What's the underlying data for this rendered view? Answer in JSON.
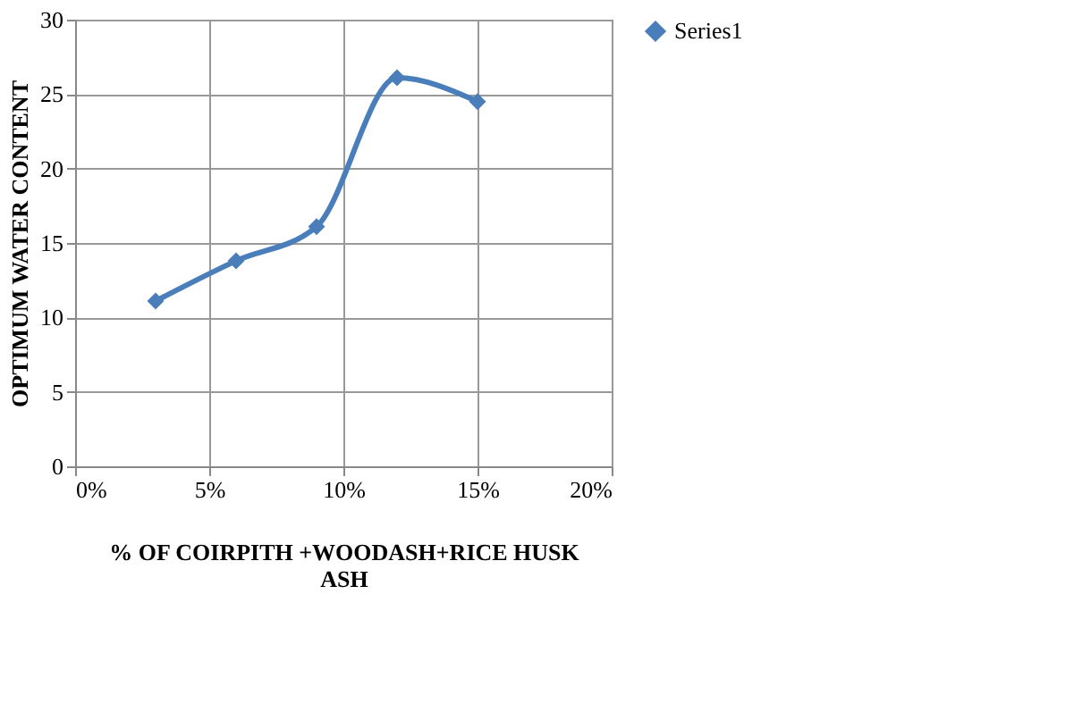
{
  "chart_data": {
    "type": "line",
    "xlabel": "% OF COIRPITH +WOODASH+RICE HUSK ASH",
    "ylabel": "OPTIMUM WATER CONTENT",
    "x": [
      3,
      6,
      9,
      12,
      15
    ],
    "series": [
      {
        "name": "Series1",
        "color": "#4a7ebb",
        "values": [
          11.1,
          13.8,
          16.1,
          26.1,
          24.5
        ]
      }
    ],
    "xlim": [
      0,
      20
    ],
    "xticks": [
      {
        "value": 0,
        "label": "0%"
      },
      {
        "value": 5,
        "label": "5%"
      },
      {
        "value": 10,
        "label": "10%"
      },
      {
        "value": 15,
        "label": "15%"
      },
      {
        "value": 20,
        "label": "20%"
      }
    ],
    "ylim": [
      0,
      30
    ],
    "yticks": [
      0,
      5,
      10,
      15,
      20,
      25,
      30
    ],
    "grid": true,
    "legend": "right",
    "marker": "diamond",
    "line_style": "solid"
  }
}
